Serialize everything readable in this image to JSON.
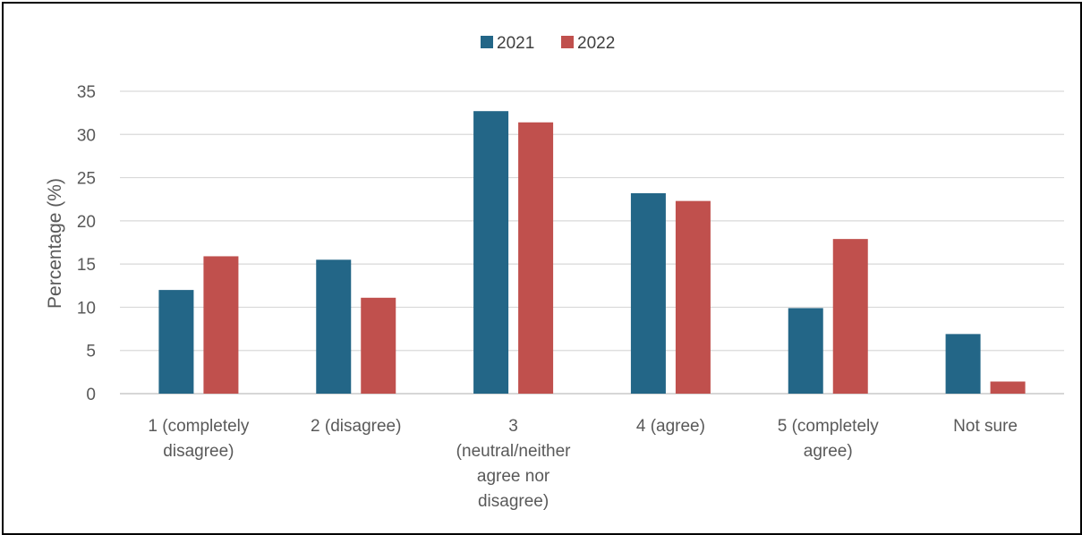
{
  "chart_data": {
    "type": "bar",
    "title": "",
    "xlabel": "",
    "ylabel": "Percentage (%)",
    "ylim": [
      0,
      35
    ],
    "yticks": [
      0,
      5,
      10,
      15,
      20,
      25,
      30,
      35
    ],
    "grid": "horizontal",
    "legend_position": "top-center",
    "categories": [
      [
        "1 (completely",
        "disagree)"
      ],
      [
        "2 (disagree)"
      ],
      [
        "3",
        "(neutral/neither",
        "agree nor",
        "disagree)"
      ],
      [
        "4 (agree)"
      ],
      [
        "5 (completely",
        "agree)"
      ],
      [
        "Not sure"
      ]
    ],
    "series": [
      {
        "name": "2021",
        "color": "#236687",
        "values": [
          12.0,
          15.5,
          32.7,
          23.2,
          9.9,
          6.9
        ]
      },
      {
        "name": "2022",
        "color": "#C0504D",
        "values": [
          15.9,
          11.1,
          31.4,
          22.3,
          17.9,
          1.4
        ]
      }
    ]
  }
}
